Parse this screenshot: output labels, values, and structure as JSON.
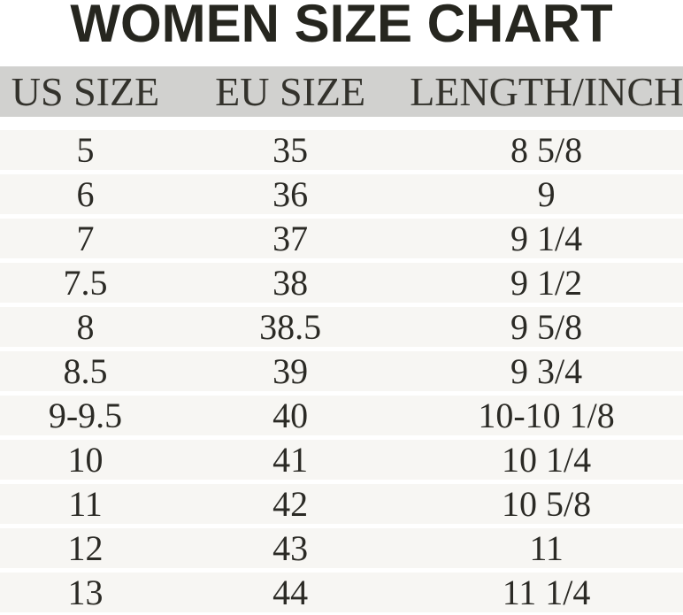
{
  "title": "WOMEN SIZE CHART",
  "colors": {
    "header_band_bg": "#d1d1cf",
    "row_band_bg": "#f7f6f3",
    "title_text": "#26261f",
    "table_text": "#2b2a25",
    "background": "#ffffff"
  },
  "chart_data": {
    "type": "table",
    "title": "WOMEN SIZE CHART",
    "columns": [
      "US SIZE",
      "EU SIZE",
      "LENGTH/INCH"
    ],
    "rows": [
      [
        "5",
        "35",
        "8 5/8"
      ],
      [
        "6",
        "36",
        "9"
      ],
      [
        "7",
        "37",
        "9 1/4"
      ],
      [
        "7.5",
        "38",
        "9 1/2"
      ],
      [
        "8",
        "38.5",
        "9 5/8"
      ],
      [
        "8.5",
        "39",
        "9 3/4"
      ],
      [
        "9-9.5",
        "40",
        "10-10 1/8"
      ],
      [
        "10",
        "41",
        "10 1/4"
      ],
      [
        "11",
        "42",
        "10 5/8"
      ],
      [
        "12",
        "43",
        "11"
      ],
      [
        "13",
        "44",
        "11 1/4"
      ]
    ],
    "layout": {
      "header_row_shaded": true,
      "body_rows_shaded": true,
      "column_alignment": [
        "center",
        "center",
        "center"
      ]
    }
  }
}
